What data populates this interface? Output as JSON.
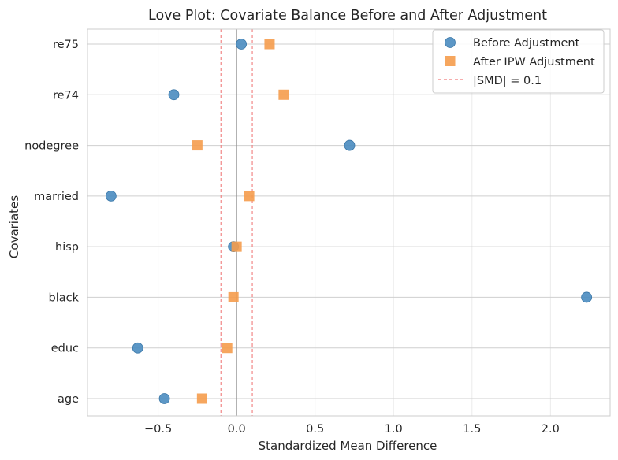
{
  "chart_data": {
    "type": "scatter",
    "title": "Love Plot: Covariate Balance Before and After Adjustment",
    "xlabel": "Standardized Mean Difference",
    "ylabel": "Covariates",
    "xlim": [
      -0.95,
      2.38
    ],
    "xticks": [
      -0.5,
      0.0,
      0.5,
      1.0,
      1.5,
      2.0
    ],
    "xtick_labels": [
      "−0.5",
      "0.0",
      "0.5",
      "1.0",
      "1.5",
      "2.0"
    ],
    "categories": [
      "age",
      "educ",
      "black",
      "hisp",
      "married",
      "nodegree",
      "re74",
      "re75"
    ],
    "threshold": 0.1,
    "series": [
      {
        "name": "Before Adjustment",
        "marker": "circle",
        "color": "#4a8cc0",
        "values": [
          -0.46,
          -0.63,
          2.23,
          -0.02,
          -0.8,
          0.72,
          -0.4,
          0.03
        ]
      },
      {
        "name": "After IPW Adjustment",
        "marker": "square",
        "color": "#f59c4d",
        "values": [
          -0.22,
          -0.06,
          -0.02,
          0.0,
          0.08,
          -0.25,
          0.3,
          0.21
        ]
      }
    ],
    "legend": {
      "position": "top-right",
      "entries": [
        "Before Adjustment",
        "After IPW Adjustment",
        "|SMD| = 0.1"
      ]
    },
    "grid": true
  }
}
